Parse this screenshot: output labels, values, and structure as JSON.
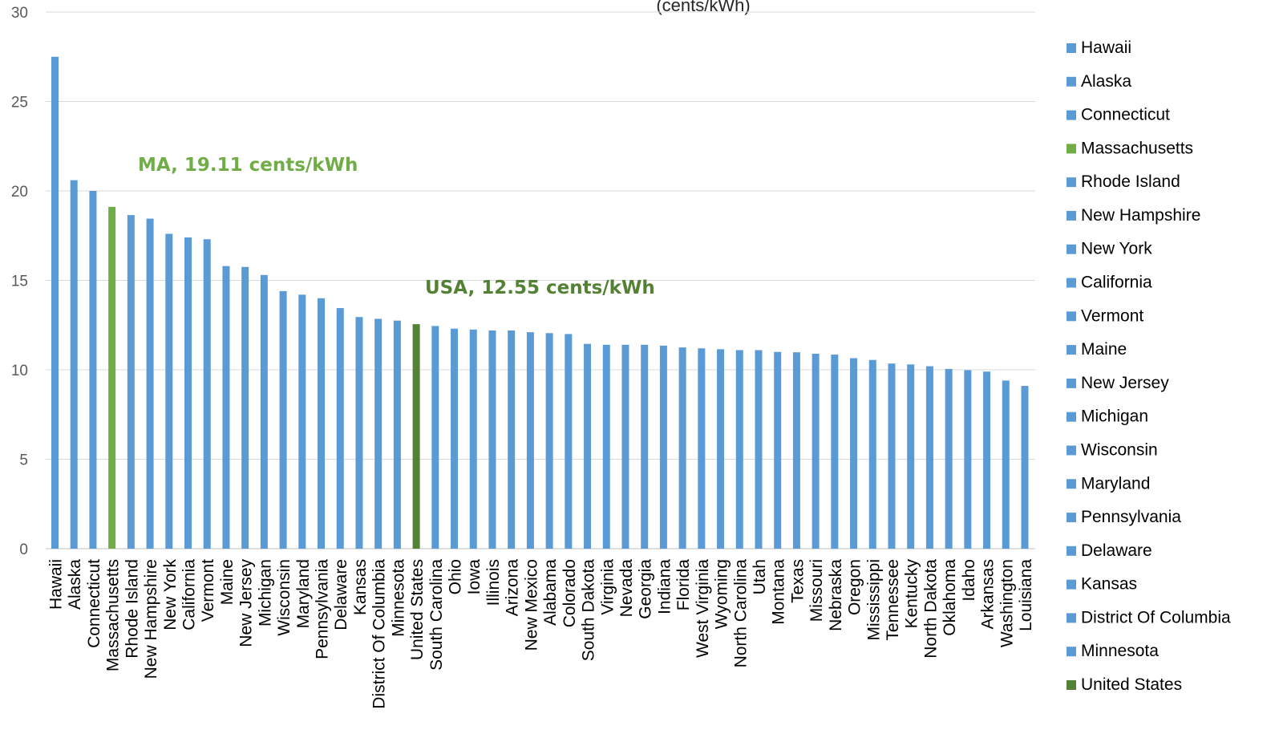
{
  "chart_data": {
    "type": "bar",
    "title_fragment": "(cents/kWh)",
    "xlabel": "",
    "ylabel": "",
    "ylim": [
      0,
      30
    ],
    "yticks": [
      0,
      5,
      10,
      15,
      20,
      25,
      30
    ],
    "grid": true,
    "legend_placement": "right",
    "colors": {
      "default": "#5B9BD5",
      "massachusetts": "#70AD47",
      "united_states": "#548235"
    },
    "categories": [
      "Hawaii",
      "Alaska",
      "Connecticut",
      "Massachusetts",
      "Rhode Island",
      "New Hampshire",
      "New York",
      "California",
      "Vermont",
      "Maine",
      "New Jersey",
      "Michigan",
      "Wisconsin",
      "Maryland",
      "Pennsylvania",
      "Delaware",
      "Kansas",
      "District Of Columbia",
      "Minnesota",
      "United States",
      "South Carolina",
      "Ohio",
      "Iowa",
      "Illinois",
      "Arizona",
      "New Mexico",
      "Alabama",
      "Colorado",
      "South Dakota",
      "Virginia",
      "Nevada",
      "Georgia",
      "Indiana",
      "Florida",
      "West Virginia",
      "Wyoming",
      "North Carolina",
      "Utah",
      "Montana",
      "Texas",
      "Missouri",
      "Nebraska",
      "Oregon",
      "Mississippi",
      "Tennessee",
      "Kentucky",
      "North Dakota",
      "Oklahoma",
      "Idaho",
      "Arkansas",
      "Washington",
      "Louisiana"
    ],
    "values": [
      27.5,
      20.6,
      20.0,
      19.11,
      18.65,
      18.45,
      17.6,
      17.4,
      17.3,
      15.8,
      15.75,
      15.3,
      14.4,
      14.2,
      14.0,
      13.45,
      12.95,
      12.85,
      12.75,
      12.55,
      12.45,
      12.3,
      12.25,
      12.2,
      12.2,
      12.1,
      12.05,
      12.0,
      11.45,
      11.4,
      11.4,
      11.4,
      11.35,
      11.25,
      11.2,
      11.15,
      11.1,
      11.1,
      11.0,
      10.98,
      10.9,
      10.85,
      10.65,
      10.55,
      10.35,
      10.3,
      10.2,
      10.05,
      9.98,
      9.9,
      9.4,
      9.1
    ],
    "bar_colors": [
      "default",
      "default",
      "default",
      "massachusetts",
      "default",
      "default",
      "default",
      "default",
      "default",
      "default",
      "default",
      "default",
      "default",
      "default",
      "default",
      "default",
      "default",
      "default",
      "default",
      "united_states",
      "default",
      "default",
      "default",
      "default",
      "default",
      "default",
      "default",
      "default",
      "default",
      "default",
      "default",
      "default",
      "default",
      "default",
      "default",
      "default",
      "default",
      "default",
      "default",
      "default",
      "default",
      "default",
      "default",
      "default",
      "default",
      "default",
      "default",
      "default",
      "default",
      "default",
      "default",
      "default"
    ],
    "annotations": [
      {
        "text": "MA, 19.11 cents/kWh",
        "color": "#70AD47"
      },
      {
        "text": "USA, 12.55 cents/kWh",
        "color": "#548235"
      }
    ],
    "legend": [
      {
        "label": "Hawaii",
        "color": "default"
      },
      {
        "label": "Alaska",
        "color": "default"
      },
      {
        "label": "Connecticut",
        "color": "default"
      },
      {
        "label": "Massachusetts",
        "color": "massachusetts"
      },
      {
        "label": "Rhode Island",
        "color": "default"
      },
      {
        "label": "New Hampshire",
        "color": "default"
      },
      {
        "label": "New York",
        "color": "default"
      },
      {
        "label": "California",
        "color": "default"
      },
      {
        "label": "Vermont",
        "color": "default"
      },
      {
        "label": "Maine",
        "color": "default"
      },
      {
        "label": "New Jersey",
        "color": "default"
      },
      {
        "label": "Michigan",
        "color": "default"
      },
      {
        "label": "Wisconsin",
        "color": "default"
      },
      {
        "label": "Maryland",
        "color": "default"
      },
      {
        "label": "Pennsylvania",
        "color": "default"
      },
      {
        "label": "Delaware",
        "color": "default"
      },
      {
        "label": "Kansas",
        "color": "default"
      },
      {
        "label": "District Of Columbia",
        "color": "default"
      },
      {
        "label": "Minnesota",
        "color": "default"
      },
      {
        "label": "United States",
        "color": "united_states"
      }
    ]
  }
}
